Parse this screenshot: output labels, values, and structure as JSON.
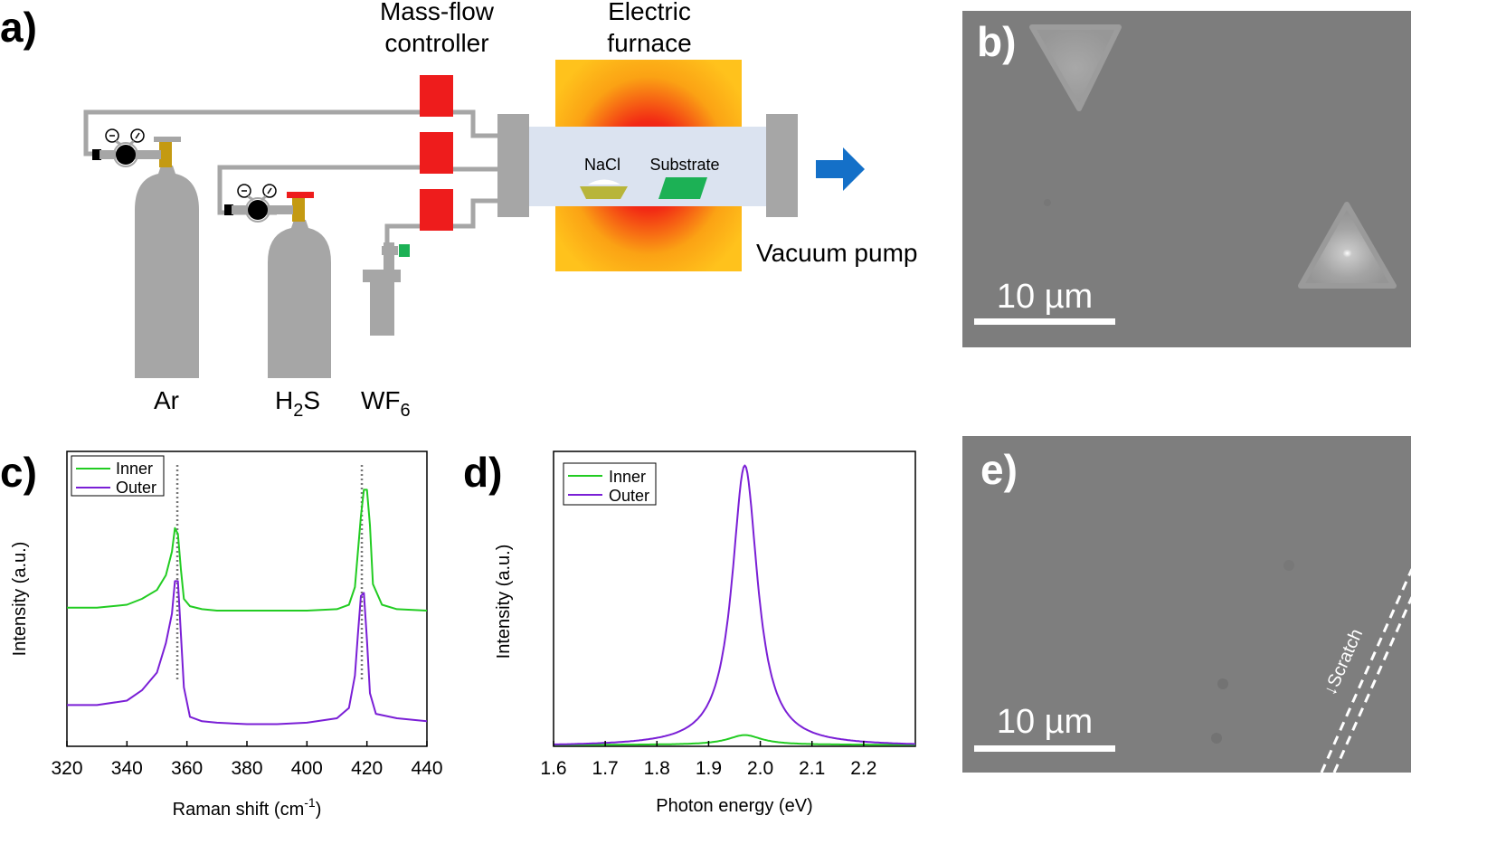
{
  "panels": {
    "a": {
      "label": "a)",
      "mfc_label_line1": "Mass-flow",
      "mfc_label_line2": "controller",
      "furnace_label_line1": "Electric",
      "furnace_label_line2": "furnace",
      "nacl": "NaCl",
      "substrate": "Substrate",
      "vacuum": "Vacuum pump",
      "gas_ar": "Ar",
      "gas_h2s_main": "H",
      "gas_h2s_sub": "2",
      "gas_h2s_end": "S",
      "gas_wf6_main": "WF",
      "gas_wf6_sub": "6"
    },
    "b": {
      "label": "b)",
      "scale": "10 µm"
    },
    "e": {
      "label": "e)",
      "scale": "10 µm",
      "scratch": "↓Scratch"
    }
  },
  "colors": {
    "inner": "#22cc22",
    "outer": "#7a1fd6",
    "mfc": "#ee1c1c",
    "pipe": "#a6a6a6",
    "arrow": "#1470c8",
    "sem_bg": "#7d7d7d"
  },
  "chart_data": [
    {
      "panel": "c",
      "label": "c)",
      "type": "line",
      "title": "",
      "xlabel_main": "Raman shift (cm",
      "xlabel_sup": "-1",
      "xlabel_end": ")",
      "ylabel": "Intensity (a.u.)",
      "xlim": [
        320,
        440
      ],
      "ylim": [
        0,
        1
      ],
      "xticks": [
        "320",
        "340",
        "360",
        "380",
        "400",
        "420",
        "440"
      ],
      "xtick_values": [
        320,
        340,
        360,
        380,
        400,
        420,
        440
      ],
      "legend": [
        "Inner",
        "Outer"
      ],
      "legend_position": "top-left",
      "reference_lines": [
        356.8,
        418.3
      ],
      "series": [
        {
          "name": "Inner",
          "baseline": 0.47,
          "x": [
            320,
            330,
            340,
            345,
            350,
            353,
            355,
            356,
            357,
            358,
            359,
            361,
            365,
            370,
            380,
            390,
            400,
            410,
            414,
            416,
            418,
            419,
            420,
            421,
            422,
            425,
            430,
            440
          ],
          "y": [
            0.47,
            0.47,
            0.48,
            0.5,
            0.53,
            0.58,
            0.66,
            0.74,
            0.72,
            0.6,
            0.5,
            0.475,
            0.465,
            0.46,
            0.46,
            0.46,
            0.46,
            0.465,
            0.48,
            0.54,
            0.78,
            0.87,
            0.87,
            0.75,
            0.55,
            0.48,
            0.465,
            0.46
          ]
        },
        {
          "name": "Outer",
          "baseline": 0.15,
          "x": [
            320,
            330,
            340,
            345,
            350,
            353,
            355,
            356,
            357,
            358,
            359,
            361,
            365,
            370,
            380,
            390,
            400,
            410,
            414,
            416,
            417,
            418,
            419,
            420,
            421,
            423,
            430,
            440
          ],
          "y": [
            0.14,
            0.14,
            0.155,
            0.19,
            0.25,
            0.35,
            0.45,
            0.56,
            0.56,
            0.38,
            0.2,
            0.1,
            0.085,
            0.08,
            0.075,
            0.075,
            0.08,
            0.095,
            0.13,
            0.24,
            0.38,
            0.51,
            0.52,
            0.36,
            0.18,
            0.11,
            0.095,
            0.085
          ]
        }
      ]
    },
    {
      "panel": "d",
      "label": "d)",
      "type": "line",
      "title": "",
      "xlabel": "Photon energy (eV)",
      "ylabel": "Intensity (a.u.)",
      "xlim": [
        1.6,
        2.3
      ],
      "ylim": [
        0,
        1.05
      ],
      "xticks": [
        "1.6",
        "1.7",
        "1.8",
        "1.9",
        "2.0",
        "2.1",
        "2.2"
      ],
      "xtick_values": [
        1.6,
        1.7,
        1.8,
        1.9,
        2.0,
        2.1,
        2.2
      ],
      "legend": [
        "Inner",
        "Outer"
      ],
      "legend_position": "top-left",
      "series": [
        {
          "name": "Inner",
          "peak": 1.97,
          "width": 0.04,
          "amplitude": 0.035,
          "offset": 0.005
        },
        {
          "name": "Outer",
          "peak": 1.97,
          "width": 0.03,
          "amplitude": 1.0,
          "offset": 0.0
        }
      ]
    }
  ]
}
